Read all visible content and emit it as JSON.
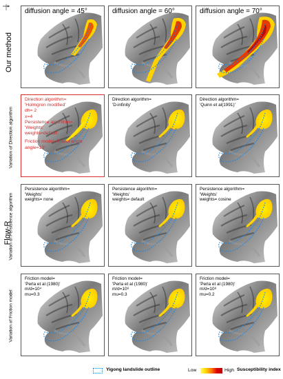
{
  "side_labels": {
    "our_method": "Our method",
    "flow_r": "Flow-R",
    "variation_direction": "Variation of Direction algorithm",
    "variation_persistence": "Variation of Persistence algorithm",
    "variation_friction": "Variation of Friction model"
  },
  "rows": [
    {
      "panels": [
        {
          "lines": [
            "diffusion angle = 45°"
          ],
          "style": "title",
          "flow": "a45"
        },
        {
          "lines": [
            "diffusion angle = 60°"
          ],
          "style": "title",
          "flow": "a60"
        },
        {
          "lines": [
            "diffusion angle = 70°"
          ],
          "style": "title",
          "flow": "a70"
        }
      ]
    },
    {
      "panels": [
        {
          "lines": [
            "Direction algorithm=",
            "'Holmgren modified'",
            "dh= 2",
            "x=4",
            "Persistence algorithm=",
            "'Weights'",
            "weights=default",
            "",
            "",
            "",
            "",
            "Friction model=Travel angle",
            "angle=13°"
          ],
          "style": "red",
          "flow": "hmod"
        },
        {
          "lines": [
            "Direction algorithm=",
            "'D-infinity'"
          ],
          "style": "normal",
          "flow": "blob"
        },
        {
          "lines": [
            "Direction algorithm=",
            "'Quinn et al(1991)'"
          ],
          "style": "normal",
          "flow": "blob"
        }
      ]
    },
    {
      "panels": [
        {
          "lines": [
            "Persistence algorithm=",
            "'Weights'",
            "weights= none"
          ],
          "style": "normal",
          "flow": "blob"
        },
        {
          "lines": [
            "Persistence algorithm=",
            "'Weights'",
            "weights= default"
          ],
          "style": "normal",
          "flow": "blob"
        },
        {
          "lines": [
            "Persistence algorithm=",
            "'Weights'",
            "weights= cosine"
          ],
          "style": "normal",
          "flow": "blob"
        }
      ]
    },
    {
      "panels": [
        {
          "lines": [
            "Friction model=",
            "'Perla et al (1980)'",
            "m/d=10⁴",
            "mu=0.3"
          ],
          "style": "normal",
          "flow": "blob"
        },
        {
          "lines": [
            "Friction model=",
            "'Perla et al (1980)'",
            "m/d=10⁸",
            "mu=0.3"
          ],
          "style": "normal",
          "flow": "blob"
        },
        {
          "lines": [
            "Friction model=",
            "'Perla et al (1980)'",
            "m/d=10⁸",
            "mu=0.2"
          ],
          "style": "normal",
          "flow": "blob"
        }
      ]
    }
  ],
  "legend": {
    "outline_label": "Yigong landslide outline",
    "low": "Low",
    "high": "High",
    "title": "Susceptibility index"
  },
  "colors": {
    "outline": "#1e88e5",
    "frame_highlight": "#d62b2b",
    "flow_low": "#ffff66",
    "flow_high": "#c40000"
  }
}
